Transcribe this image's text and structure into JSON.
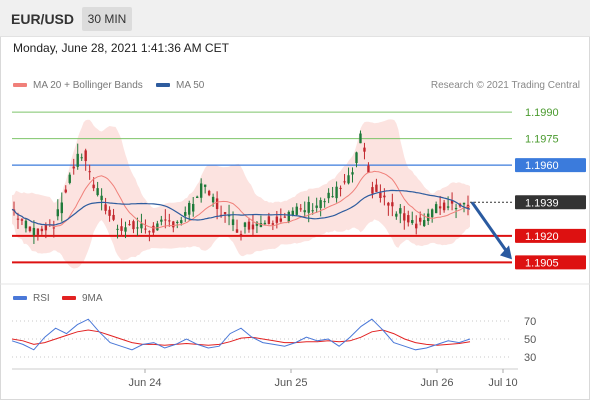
{
  "header": {
    "pair": "EUR/USD",
    "timeframe": "30 MIN"
  },
  "datetime": "Monday, June 28, 2021 1:41:36 AM CET",
  "legend": {
    "ma20_label": "MA 20 + Bollinger Bands",
    "ma50_label": "MA 50",
    "credit": "Research © 2021 Trading Central"
  },
  "rsi_legend": {
    "rsi_label": "RSI",
    "ma_label": "9MA"
  },
  "colors": {
    "ma20": "#f0807a",
    "ma50": "#2e5c9e",
    "resistance_blue": "#3b7bdc",
    "support_red": "#dd1111",
    "target_green": "#7ec46a",
    "rsi": "#4a78d8",
    "rsi_ma": "#e22222",
    "arrow": "#2a5aa0",
    "candle_up": "#1f7a3a",
    "candle_down": "#c2272d"
  },
  "chart_data": [
    {
      "type": "candlestick",
      "instrument": "EUR/USD",
      "ylim": [
        1.1895,
        1.1998
      ],
      "x_ticks": [
        "Jun 24",
        "Jun 25",
        "Jun 26",
        "Jul 10"
      ],
      "levels": [
        {
          "value": 1.199,
          "label": "1.1990",
          "style": "target"
        },
        {
          "value": 1.1975,
          "label": "1.1975",
          "style": "target"
        },
        {
          "value": 1.196,
          "label": "1.1960",
          "style": "resistance"
        },
        {
          "value": 1.1939,
          "label": "1.1939",
          "style": "current"
        },
        {
          "value": 1.192,
          "label": "1.1920",
          "style": "pivot"
        },
        {
          "value": 1.1905,
          "label": "1.1905",
          "style": "support"
        }
      ],
      "key_path": [
        [
          0,
          1.1935
        ],
        [
          10,
          1.1922
        ],
        [
          22,
          1.1928
        ],
        [
          30,
          1.1958
        ],
        [
          36,
          1.1968
        ],
        [
          40,
          1.195
        ],
        [
          52,
          1.1926
        ],
        [
          70,
          1.1924
        ],
        [
          86,
          1.193
        ],
        [
          96,
          1.1948
        ],
        [
          106,
          1.1932
        ],
        [
          114,
          1.1924
        ],
        [
          124,
          1.1928
        ],
        [
          140,
          1.1932
        ],
        [
          160,
          1.1942
        ],
        [
          170,
          1.1952
        ],
        [
          175,
          1.1975
        ],
        [
          180,
          1.1948
        ],
        [
          192,
          1.1934
        ],
        [
          204,
          1.1927
        ],
        [
          214,
          1.1936
        ],
        [
          222,
          1.1938
        ],
        [
          230,
          1.1939
        ]
      ],
      "forecast_arrow": {
        "from": 1.1939,
        "to": 1.1905
      }
    },
    {
      "type": "line",
      "title": "RSI",
      "ylim": [
        20,
        80
      ],
      "y_ticks": [
        70,
        50,
        30
      ],
      "series": [
        {
          "name": "RSI",
          "values": [
            48,
            44,
            38,
            52,
            62,
            56,
            66,
            72,
            58,
            46,
            42,
            38,
            44,
            46,
            40,
            44,
            50,
            44,
            40,
            42,
            56,
            62,
            52,
            46,
            44,
            42,
            46,
            52,
            48,
            50,
            42,
            52,
            64,
            72,
            60,
            46,
            42,
            38,
            40,
            44,
            48,
            46,
            50
          ]
        },
        {
          "name": "9MA",
          "values": [
            50,
            48,
            44,
            46,
            50,
            54,
            58,
            60,
            58,
            54,
            50,
            46,
            44,
            44,
            43,
            44,
            45,
            44,
            43,
            44,
            47,
            51,
            52,
            50,
            48,
            46,
            46,
            47,
            47,
            48,
            47,
            48,
            52,
            58,
            60,
            56,
            50,
            46,
            44,
            43,
            44,
            45,
            47
          ]
        }
      ]
    }
  ]
}
